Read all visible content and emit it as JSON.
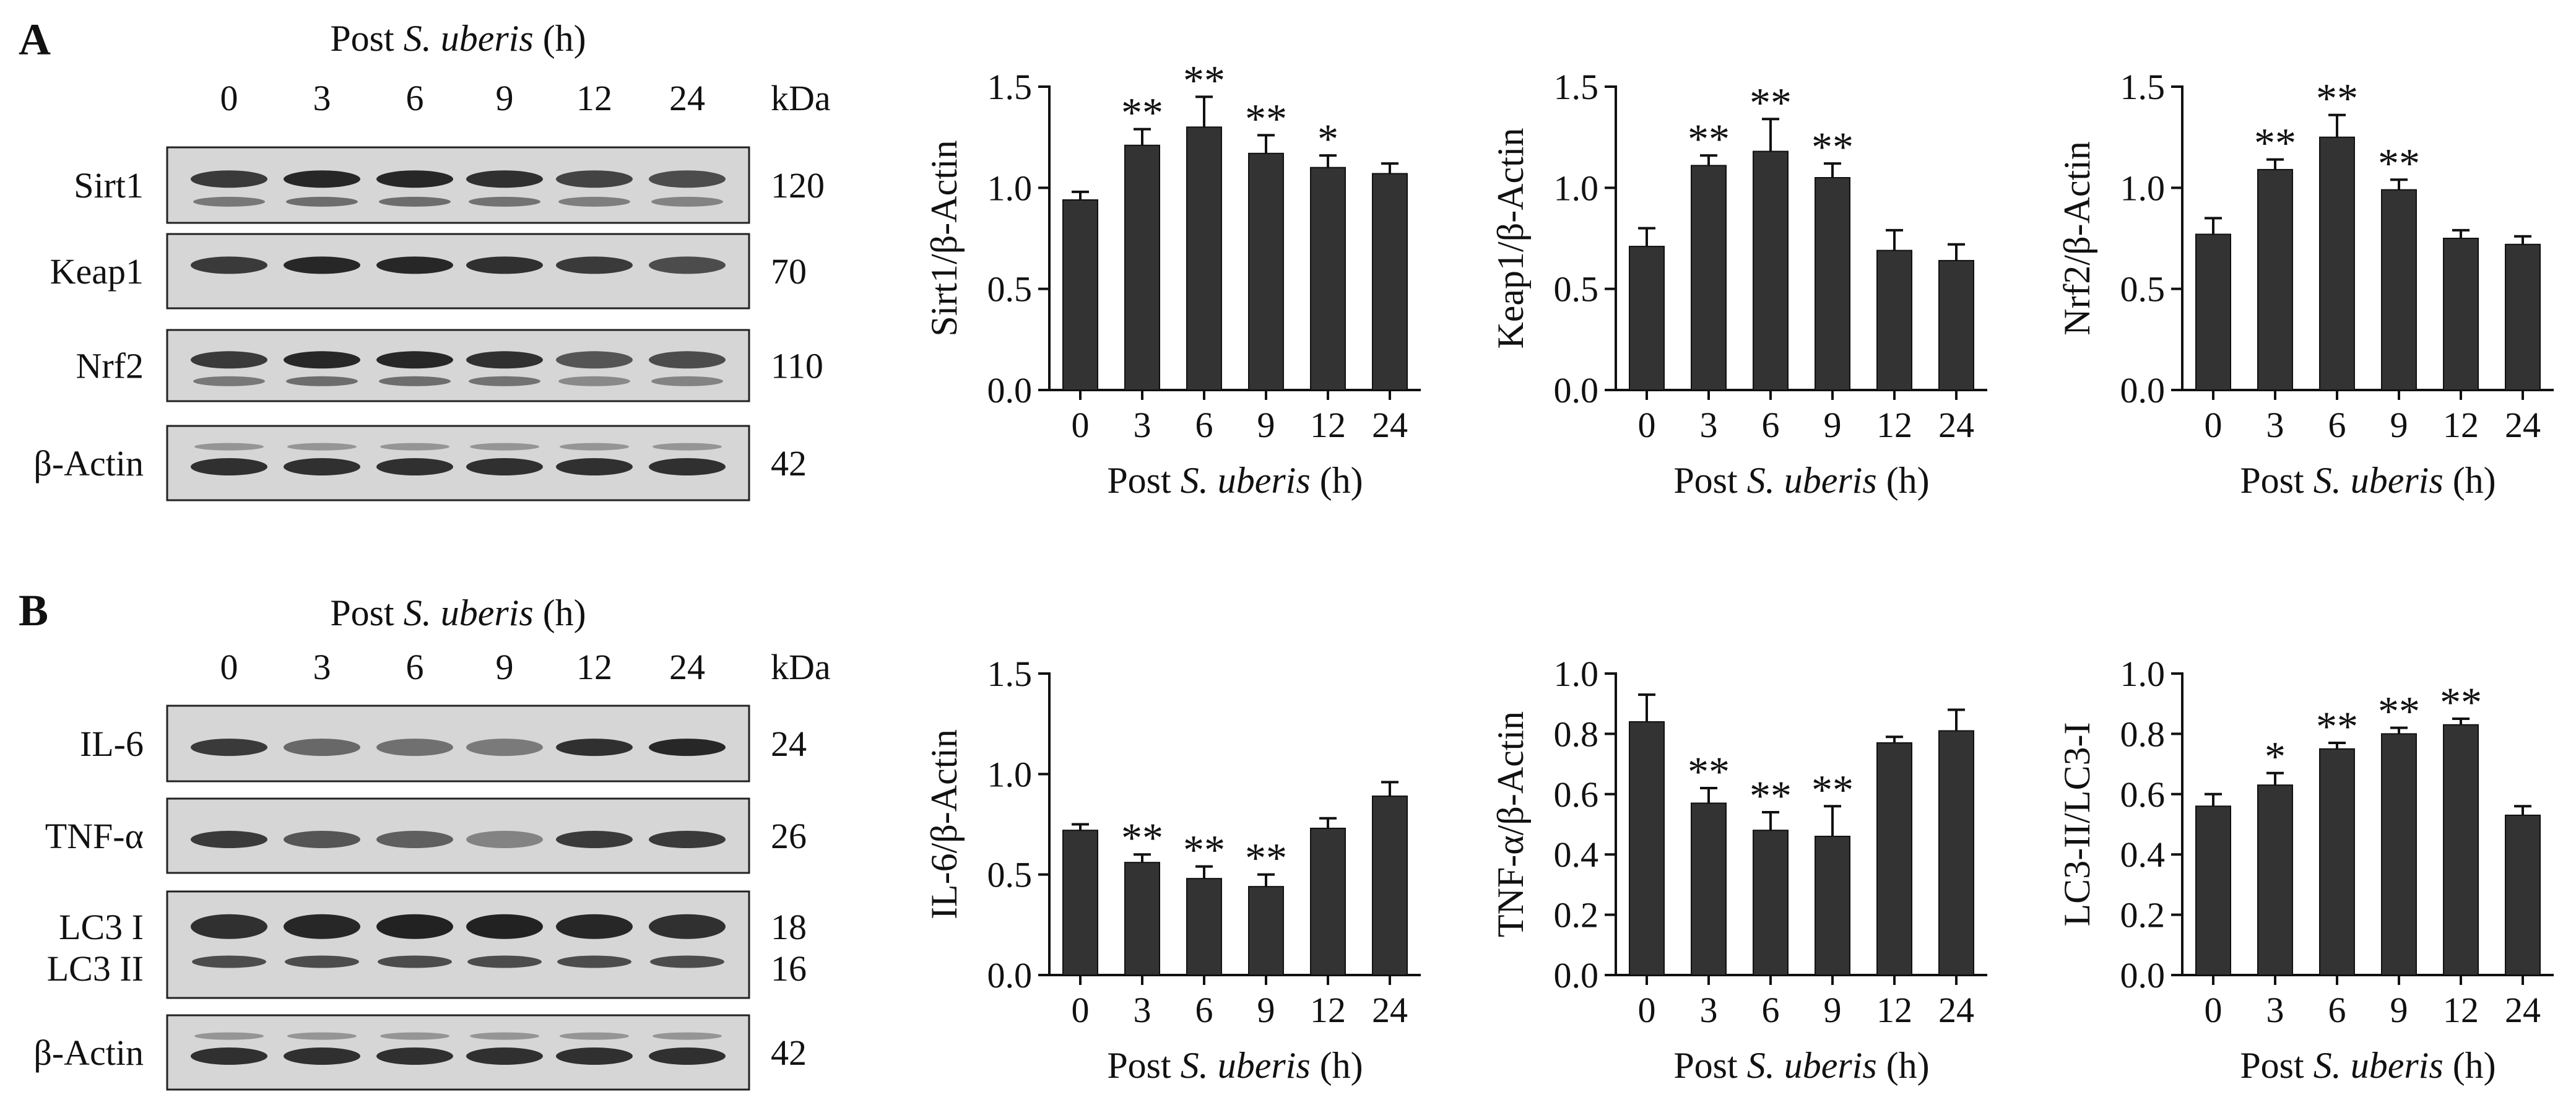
{
  "panels": [
    {
      "letter": "A",
      "header": "Post S. uberis (h)",
      "header_plain": "Post ",
      "header_italic": "S. uberis",
      "header_tail": " (h)",
      "lanes": [
        "0",
        "3",
        "6",
        "9",
        "12",
        "24"
      ],
      "kda_label": "kDa",
      "blots": [
        {
          "label": "Sirt1",
          "kda": "120"
        },
        {
          "label": "Keap1",
          "kda": "70"
        },
        {
          "label": "Nrf2",
          "kda": "110"
        },
        {
          "label": "β-Actin",
          "kda": "42"
        }
      ]
    },
    {
      "letter": "B",
      "header": "Post S. uberis (h)",
      "header_plain": "Post ",
      "header_italic": "S. uberis",
      "header_tail": " (h)",
      "lanes": [
        "0",
        "3",
        "6",
        "9",
        "12",
        "24"
      ],
      "kda_label": "kDa",
      "blots": [
        {
          "label": "IL-6",
          "kda": "24"
        },
        {
          "label": "TNF-α",
          "kda": "26"
        },
        {
          "label": "LC3 I",
          "kda": "18",
          "label2": "LC3 II",
          "kda2": "16"
        },
        {
          "label": "β-Actin",
          "kda": "42"
        }
      ]
    }
  ],
  "colors": {
    "bar": "#333333",
    "axis": "#111111",
    "blot_bg": "#d6d6d6",
    "band": "#1e1e1e"
  },
  "chart_data": [
    {
      "type": "bar",
      "panel": "A",
      "title": "",
      "ylabel": "Sirt1/β-Actin",
      "xlabel": "Post S. uberis (h)",
      "categories": [
        "0",
        "3",
        "6",
        "9",
        "12",
        "24"
      ],
      "values": [
        0.94,
        1.21,
        1.3,
        1.17,
        1.1,
        1.07
      ],
      "errors": [
        0.04,
        0.08,
        0.15,
        0.09,
        0.06,
        0.05
      ],
      "significance": [
        "",
        "**",
        "**",
        "**",
        "*",
        ""
      ],
      "ylim": [
        0,
        1.5
      ],
      "yticks": [
        "0.0",
        "0.5",
        "1.0",
        "1.5"
      ]
    },
    {
      "type": "bar",
      "panel": "A",
      "title": "",
      "ylabel": "Keap1/β-Actin",
      "xlabel": "Post S. uberis (h)",
      "categories": [
        "0",
        "3",
        "6",
        "9",
        "12",
        "24"
      ],
      "values": [
        0.71,
        1.11,
        1.18,
        1.05,
        0.69,
        0.64
      ],
      "errors": [
        0.09,
        0.05,
        0.16,
        0.07,
        0.1,
        0.08
      ],
      "significance": [
        "",
        "**",
        "**",
        "**",
        "",
        ""
      ],
      "ylim": [
        0,
        1.5
      ],
      "yticks": [
        "0.0",
        "0.5",
        "1.0",
        "1.5"
      ]
    },
    {
      "type": "bar",
      "panel": "A",
      "title": "",
      "ylabel": "Nrf2/β-Actin",
      "xlabel": "Post S. uberis (h)",
      "categories": [
        "0",
        "3",
        "6",
        "9",
        "12",
        "24"
      ],
      "values": [
        0.77,
        1.09,
        1.25,
        0.99,
        0.75,
        0.72
      ],
      "errors": [
        0.08,
        0.05,
        0.11,
        0.05,
        0.04,
        0.04
      ],
      "significance": [
        "",
        "**",
        "**",
        "**",
        "",
        ""
      ],
      "ylim": [
        0,
        1.5
      ],
      "yticks": [
        "0.0",
        "0.5",
        "1.0",
        "1.5"
      ]
    },
    {
      "type": "bar",
      "panel": "B",
      "title": "",
      "ylabel": "IL-6/β-Actin",
      "xlabel": "Post S. uberis (h)",
      "categories": [
        "0",
        "3",
        "6",
        "9",
        "12",
        "24"
      ],
      "values": [
        0.72,
        0.56,
        0.48,
        0.44,
        0.73,
        0.89
      ],
      "errors": [
        0.03,
        0.04,
        0.06,
        0.06,
        0.05,
        0.07
      ],
      "significance": [
        "",
        "**",
        "**",
        "**",
        "",
        ""
      ],
      "ylim": [
        0,
        1.5
      ],
      "yticks": [
        "0.0",
        "0.5",
        "1.0",
        "1.5"
      ]
    },
    {
      "type": "bar",
      "panel": "B",
      "title": "",
      "ylabel": "TNF-α/β-Actin",
      "xlabel": "Post S. uberis (h)",
      "categories": [
        "0",
        "3",
        "6",
        "9",
        "12",
        "24"
      ],
      "values": [
        0.84,
        0.57,
        0.48,
        0.46,
        0.77,
        0.81
      ],
      "errors": [
        0.09,
        0.05,
        0.06,
        0.1,
        0.02,
        0.07
      ],
      "significance": [
        "",
        "**",
        "**",
        "**",
        "",
        ""
      ],
      "ylim": [
        0,
        1.0
      ],
      "yticks": [
        "0.0",
        "0.2",
        "0.4",
        "0.6",
        "0.8",
        "1.0"
      ]
    },
    {
      "type": "bar",
      "panel": "B",
      "title": "",
      "ylabel": "LC3-II/LC3-I",
      "xlabel": "Post S. uberis (h)",
      "categories": [
        "0",
        "3",
        "6",
        "9",
        "12",
        "24"
      ],
      "values": [
        0.56,
        0.63,
        0.75,
        0.8,
        0.83,
        0.53
      ],
      "errors": [
        0.04,
        0.04,
        0.02,
        0.02,
        0.02,
        0.03
      ],
      "significance": [
        "",
        "*",
        "**",
        "**",
        "**",
        ""
      ],
      "ylim": [
        0,
        1.0
      ],
      "yticks": [
        "0.0",
        "0.2",
        "0.4",
        "0.6",
        "0.8",
        "1.0"
      ]
    }
  ]
}
